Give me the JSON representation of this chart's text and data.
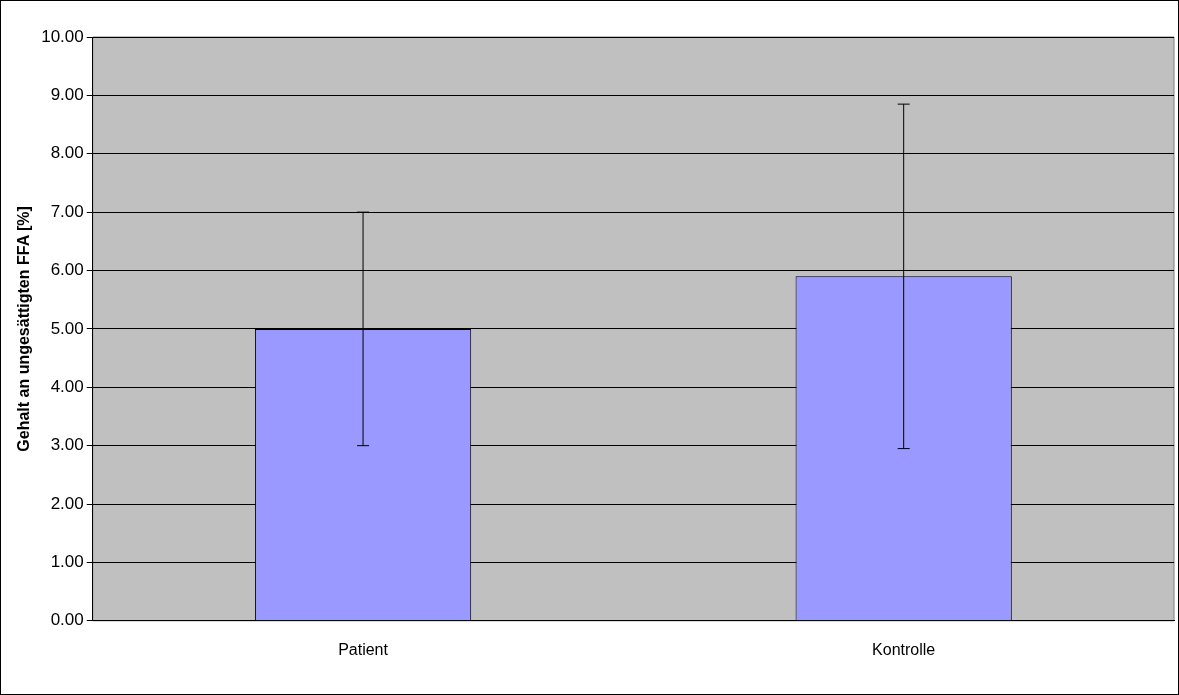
{
  "chart_data": {
    "type": "bar",
    "ylabel": "Gehalt an ungesättigten FFA [%]",
    "categories": [
      "Patient",
      "Kontrolle"
    ],
    "values": [
      5.0,
      5.9
    ],
    "errors": [
      2.0,
      2.95
    ],
    "color": "#9999ff",
    "ylim": [
      0,
      10
    ],
    "yticks": [
      {
        "value": 0,
        "label": "0.00"
      },
      {
        "value": 1,
        "label": "1.00"
      },
      {
        "value": 2,
        "label": "2.00"
      },
      {
        "value": 3,
        "label": "3.00"
      },
      {
        "value": 4,
        "label": "4.00"
      },
      {
        "value": 5,
        "label": "5.00"
      },
      {
        "value": 6,
        "label": "6.00"
      },
      {
        "value": 7,
        "label": "7.00"
      },
      {
        "value": 8,
        "label": "8.00"
      },
      {
        "value": 9,
        "label": "9.00"
      },
      {
        "value": 10,
        "label": "10.00"
      }
    ],
    "grid": "y"
  }
}
